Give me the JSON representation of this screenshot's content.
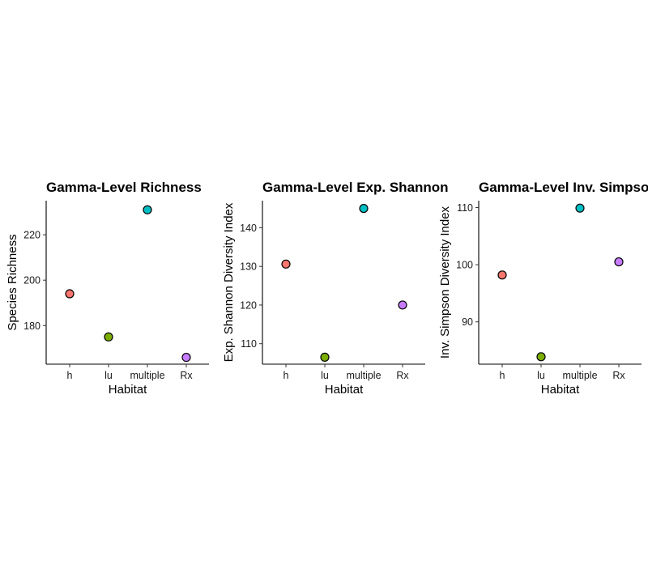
{
  "figure": {
    "point_outline": "#000000"
  },
  "chart_data": [
    {
      "type": "scatter",
      "title": "Gamma-Level Richness",
      "xlabel": "Habitat",
      "ylabel": "Species Richness",
      "categories": [
        "h",
        "lu",
        "multiple",
        "Rx"
      ],
      "values": [
        194,
        175,
        231,
        166
      ],
      "colors": [
        "#F8766D",
        "#7CAE00",
        "#00BFC4",
        "#C77CFF"
      ],
      "ylim": [
        163,
        235
      ],
      "yticks": [
        180,
        200,
        220
      ],
      "grid": false,
      "legend": "none"
    },
    {
      "type": "scatter",
      "title": "Gamma-Level Exp. Shannon",
      "xlabel": "Habitat",
      "ylabel": "Exp. Shannon Diversity Index",
      "categories": [
        "h",
        "lu",
        "multiple",
        "Rx"
      ],
      "values": [
        130.6,
        106.5,
        145.0,
        120.0
      ],
      "colors": [
        "#F8766D",
        "#7CAE00",
        "#00BFC4",
        "#C77CFF"
      ],
      "ylim": [
        104.7,
        147.0
      ],
      "yticks": [
        110,
        120,
        130,
        140
      ],
      "grid": false,
      "legend": "none"
    },
    {
      "type": "scatter",
      "title": "Gamma-Level Inv. Simpson",
      "xlabel": "Habitat",
      "ylabel": "Inv. Simpson Diversity Index",
      "categories": [
        "h",
        "lu",
        "multiple",
        "Rx"
      ],
      "values": [
        98.2,
        83.9,
        109.9,
        100.5
      ],
      "colors": [
        "#F8766D",
        "#7CAE00",
        "#00BFC4",
        "#C77CFF"
      ],
      "ylim": [
        82.6,
        111.2
      ],
      "yticks": [
        90,
        100,
        110
      ],
      "grid": false,
      "legend": "none"
    }
  ]
}
